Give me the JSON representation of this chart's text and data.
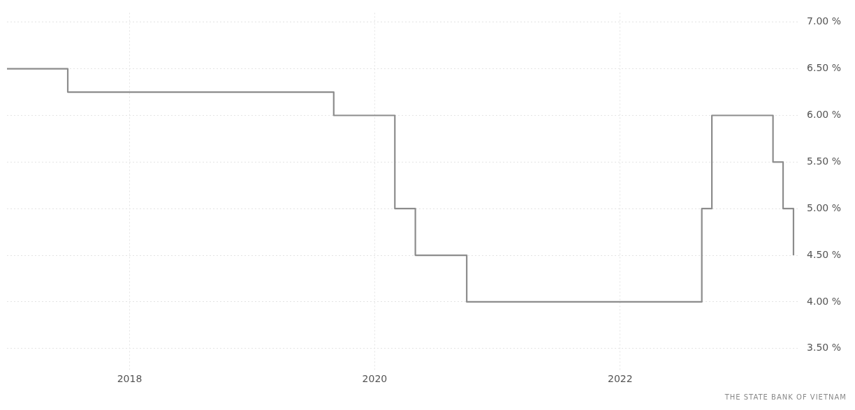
{
  "chart_data": {
    "type": "step",
    "x": [
      "2017-01",
      "2017-07",
      "2019-09",
      "2020-03",
      "2020-05",
      "2020-10",
      "2022-09",
      "2022-10",
      "2023-04",
      "2023-05",
      "2023-06"
    ],
    "series": [
      {
        "color": "#8c8c8c",
        "values": [
          6.5,
          6.25,
          6.0,
          5.0,
          4.5,
          4.0,
          5.0,
          6.0,
          5.5,
          5.0,
          4.5
        ]
      }
    ],
    "xlim": [
      "2017-01",
      "2023-06-20"
    ],
    "xticks": [
      {
        "value": "2018",
        "label": "2018"
      },
      {
        "value": "2020",
        "label": "2020"
      },
      {
        "value": "2022",
        "label": "2022"
      }
    ],
    "ylim": [
      3.25,
      7.1
    ],
    "yticks": [
      {
        "value": 3.5,
        "label": "3.50 %"
      },
      {
        "value": 4.0,
        "label": "4.00 %"
      },
      {
        "value": 4.5,
        "label": "4.50 %"
      },
      {
        "value": 5.0,
        "label": "5.00 %"
      },
      {
        "value": 5.5,
        "label": "5.50 %"
      },
      {
        "value": 6.0,
        "label": "6.00 %"
      },
      {
        "value": 6.5,
        "label": "6.50 %"
      },
      {
        "value": 7.0,
        "label": "7.00 %"
      }
    ],
    "grid": true,
    "line_style": "solid",
    "marker": "none",
    "legend": false,
    "annotations": [
      "THE STATE BANK OF VIETNAM"
    ]
  }
}
